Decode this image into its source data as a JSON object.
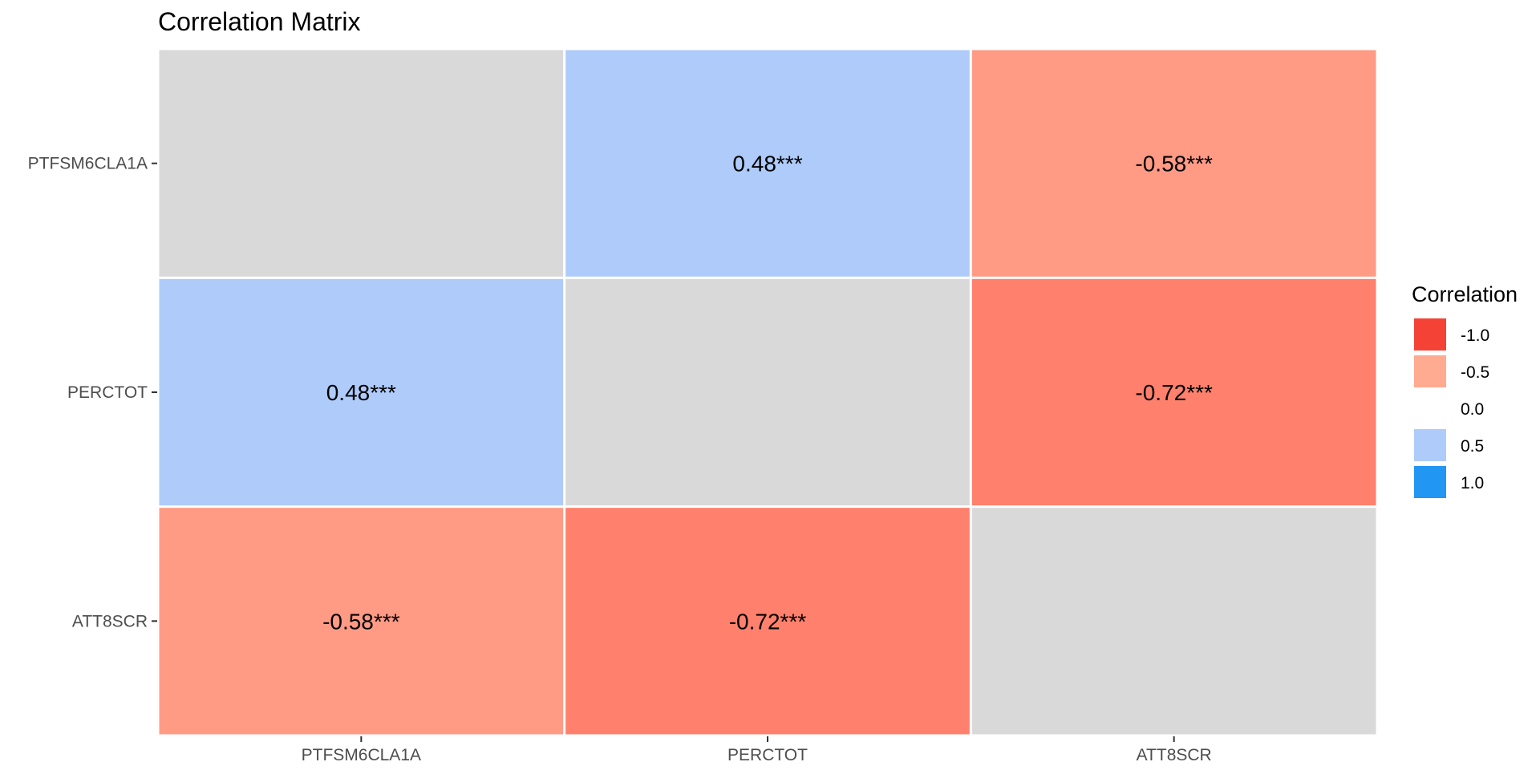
{
  "chart_data": {
    "type": "heatmap",
    "title": "Correlation Matrix",
    "x_categories": [
      "PTFSM6CLA1A",
      "PERCTOT",
      "ATT8SCR"
    ],
    "y_categories": [
      "PTFSM6CLA1A",
      "PERCTOT",
      "ATT8SCR"
    ],
    "cells": [
      {
        "x": "PTFSM6CLA1A",
        "y": "PTFSM6CLA1A",
        "value": null,
        "label": ""
      },
      {
        "x": "PERCTOT",
        "y": "PTFSM6CLA1A",
        "value": 0.48,
        "label": "0.48***"
      },
      {
        "x": "ATT8SCR",
        "y": "PTFSM6CLA1A",
        "value": -0.58,
        "label": "-0.58***"
      },
      {
        "x": "PTFSM6CLA1A",
        "y": "PERCTOT",
        "value": 0.48,
        "label": "0.48***"
      },
      {
        "x": "PERCTOT",
        "y": "PERCTOT",
        "value": null,
        "label": ""
      },
      {
        "x": "ATT8SCR",
        "y": "PERCTOT",
        "value": -0.72,
        "label": "-0.72***"
      },
      {
        "x": "PTFSM6CLA1A",
        "y": "ATT8SCR",
        "value": -0.58,
        "label": "-0.58***"
      },
      {
        "x": "PERCTOT",
        "y": "ATT8SCR",
        "value": -0.72,
        "label": "-0.72***"
      },
      {
        "x": "ATT8SCR",
        "y": "ATT8SCR",
        "value": null,
        "label": ""
      }
    ],
    "value_range": [
      -1,
      1
    ],
    "na_color": "#d9d9d9",
    "cell_colors": {
      "0.48": "#aecbfa",
      "-0.58": "#ff9a85",
      "-0.72": "#ff806c"
    },
    "legend": {
      "title": "Correlation",
      "position": "right",
      "entries": [
        {
          "label": "-1.0",
          "color": "#f44336"
        },
        {
          "label": "-0.5",
          "color": "#ffab91"
        },
        {
          "label": "0.0",
          "color": "#ffffff"
        },
        {
          "label": "0.5",
          "color": "#aecbfa"
        },
        {
          "label": "1.0",
          "color": "#2196f3"
        }
      ]
    },
    "grid": false
  }
}
